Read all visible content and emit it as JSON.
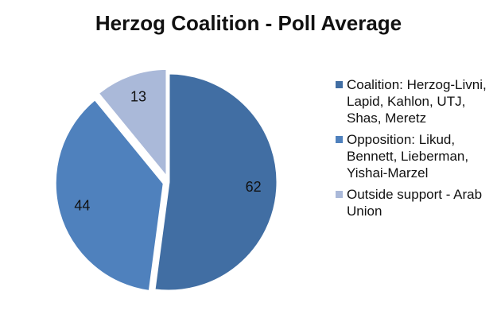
{
  "chart_data": {
    "type": "pie",
    "title": "Herzog Coalition - Poll Average",
    "categories": [
      "Coalition: Herzog-Livni, Lapid, Kahlon, UTJ, Shas, Meretz",
      "Opposition: Likud, Bennett, Lieberman, Yishai-Marzel",
      "Outside support - Arab Union"
    ],
    "values": [
      62,
      44,
      13
    ],
    "colors": [
      "#416ea3",
      "#4f81bd",
      "#aab9d9"
    ],
    "legend": "right"
  }
}
